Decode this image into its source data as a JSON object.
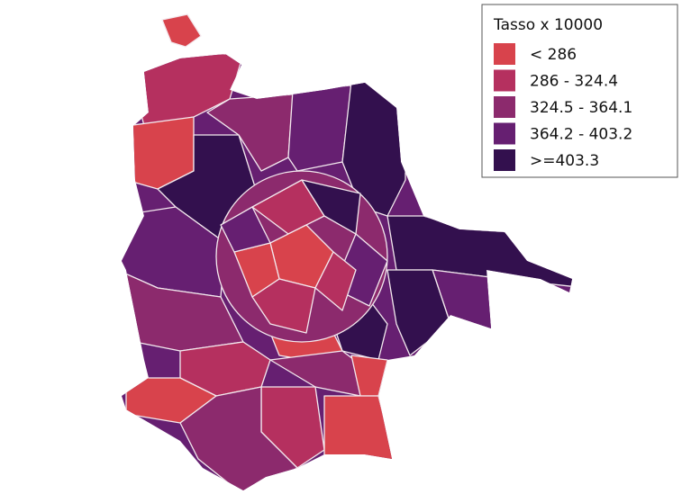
{
  "legend": {
    "title": "Tasso x 10000",
    "items": [
      {
        "label": "< 286",
        "color": "#d8434c"
      },
      {
        "label": "286 - 324.4",
        "color": "#b5305f"
      },
      {
        "label": "324.5 - 364.1",
        "color": "#8c2a6d"
      },
      {
        "label": "364.2 - 403.2",
        "color": "#661f71"
      },
      {
        "label": ">=403.3",
        "color": "#33104e"
      }
    ]
  }
}
